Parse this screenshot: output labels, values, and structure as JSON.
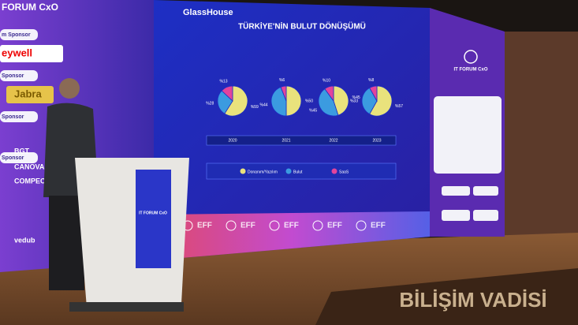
{
  "slide": {
    "brand": "GlassHouse",
    "title": "TÜRKİYE'NİN BULUT DÖNÜŞÜMÜ",
    "legend": [
      {
        "name": "Donanım/Yazılım",
        "color": "#e9e27c"
      },
      {
        "name": "Bulut",
        "color": "#3b9be0"
      },
      {
        "name": "SaaS",
        "color": "#e2449c"
      }
    ],
    "pies": [
      {
        "year": "2020",
        "values": [
          59,
          28,
          13
        ],
        "value_labels": [
          "%59",
          "%28",
          "%13"
        ]
      },
      {
        "year": "2021",
        "values": [
          50,
          44,
          6
        ],
        "value_labels": [
          "%50",
          "%44",
          "%6"
        ]
      },
      {
        "year": "2022",
        "values": [
          45,
          45,
          10
        ],
        "value_labels": [
          "%45",
          "%45",
          "%10"
        ]
      },
      {
        "year": "2023",
        "values": [
          57,
          33,
          8
        ],
        "value_labels": [
          "%57",
          "%33",
          "%8"
        ]
      }
    ],
    "strip": [
      "EFF",
      "EFF",
      "EFF",
      "EFF",
      "EFF"
    ]
  },
  "left_screen": {
    "event": "FORUM CxO",
    "sponsor_tags": [
      "m Sponsor",
      "Sponsor",
      "Sponsor",
      "Sponsor"
    ],
    "sponsors": [
      "eywell",
      "Jabra",
      "BGT",
      "CANOVA",
      "COMPEC",
      "vedub"
    ]
  },
  "right_panel": {
    "event": "IT FORUM CxO"
  },
  "podium_screen": {
    "event": "IT FORUM CxO"
  },
  "stage_sign": "BİLİŞİM VADİSİ"
}
